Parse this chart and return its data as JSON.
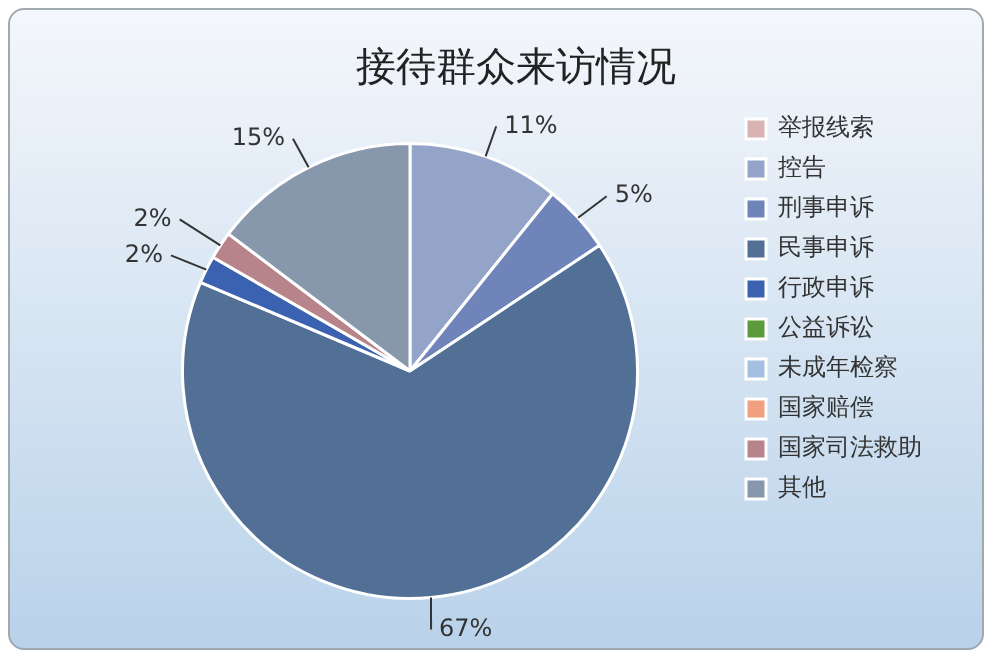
{
  "chart_data": {
    "type": "pie",
    "title": "接待群众来访情况",
    "categories": [
      "举报线索",
      "控告",
      "刑事申诉",
      "民事申诉",
      "行政申诉",
      "公益诉讼",
      "未成年检察",
      "国家赔偿",
      "国家司法救助",
      "其他"
    ],
    "values": [
      0,
      11,
      5,
      67,
      2,
      0,
      0,
      0,
      2,
      15
    ],
    "value_labels": [
      null,
      "11%",
      "5%",
      "67%",
      "2%",
      null,
      null,
      null,
      "2%",
      "15%"
    ],
    "colors": [
      "#d9b3b3",
      "#94a3c8",
      "#6f84b8",
      "#526f96",
      "#3a62b0",
      "#5a9a3a",
      "#a3c0e0",
      "#f0a080",
      "#b8848c",
      "#8797ac"
    ],
    "legend": "right"
  }
}
